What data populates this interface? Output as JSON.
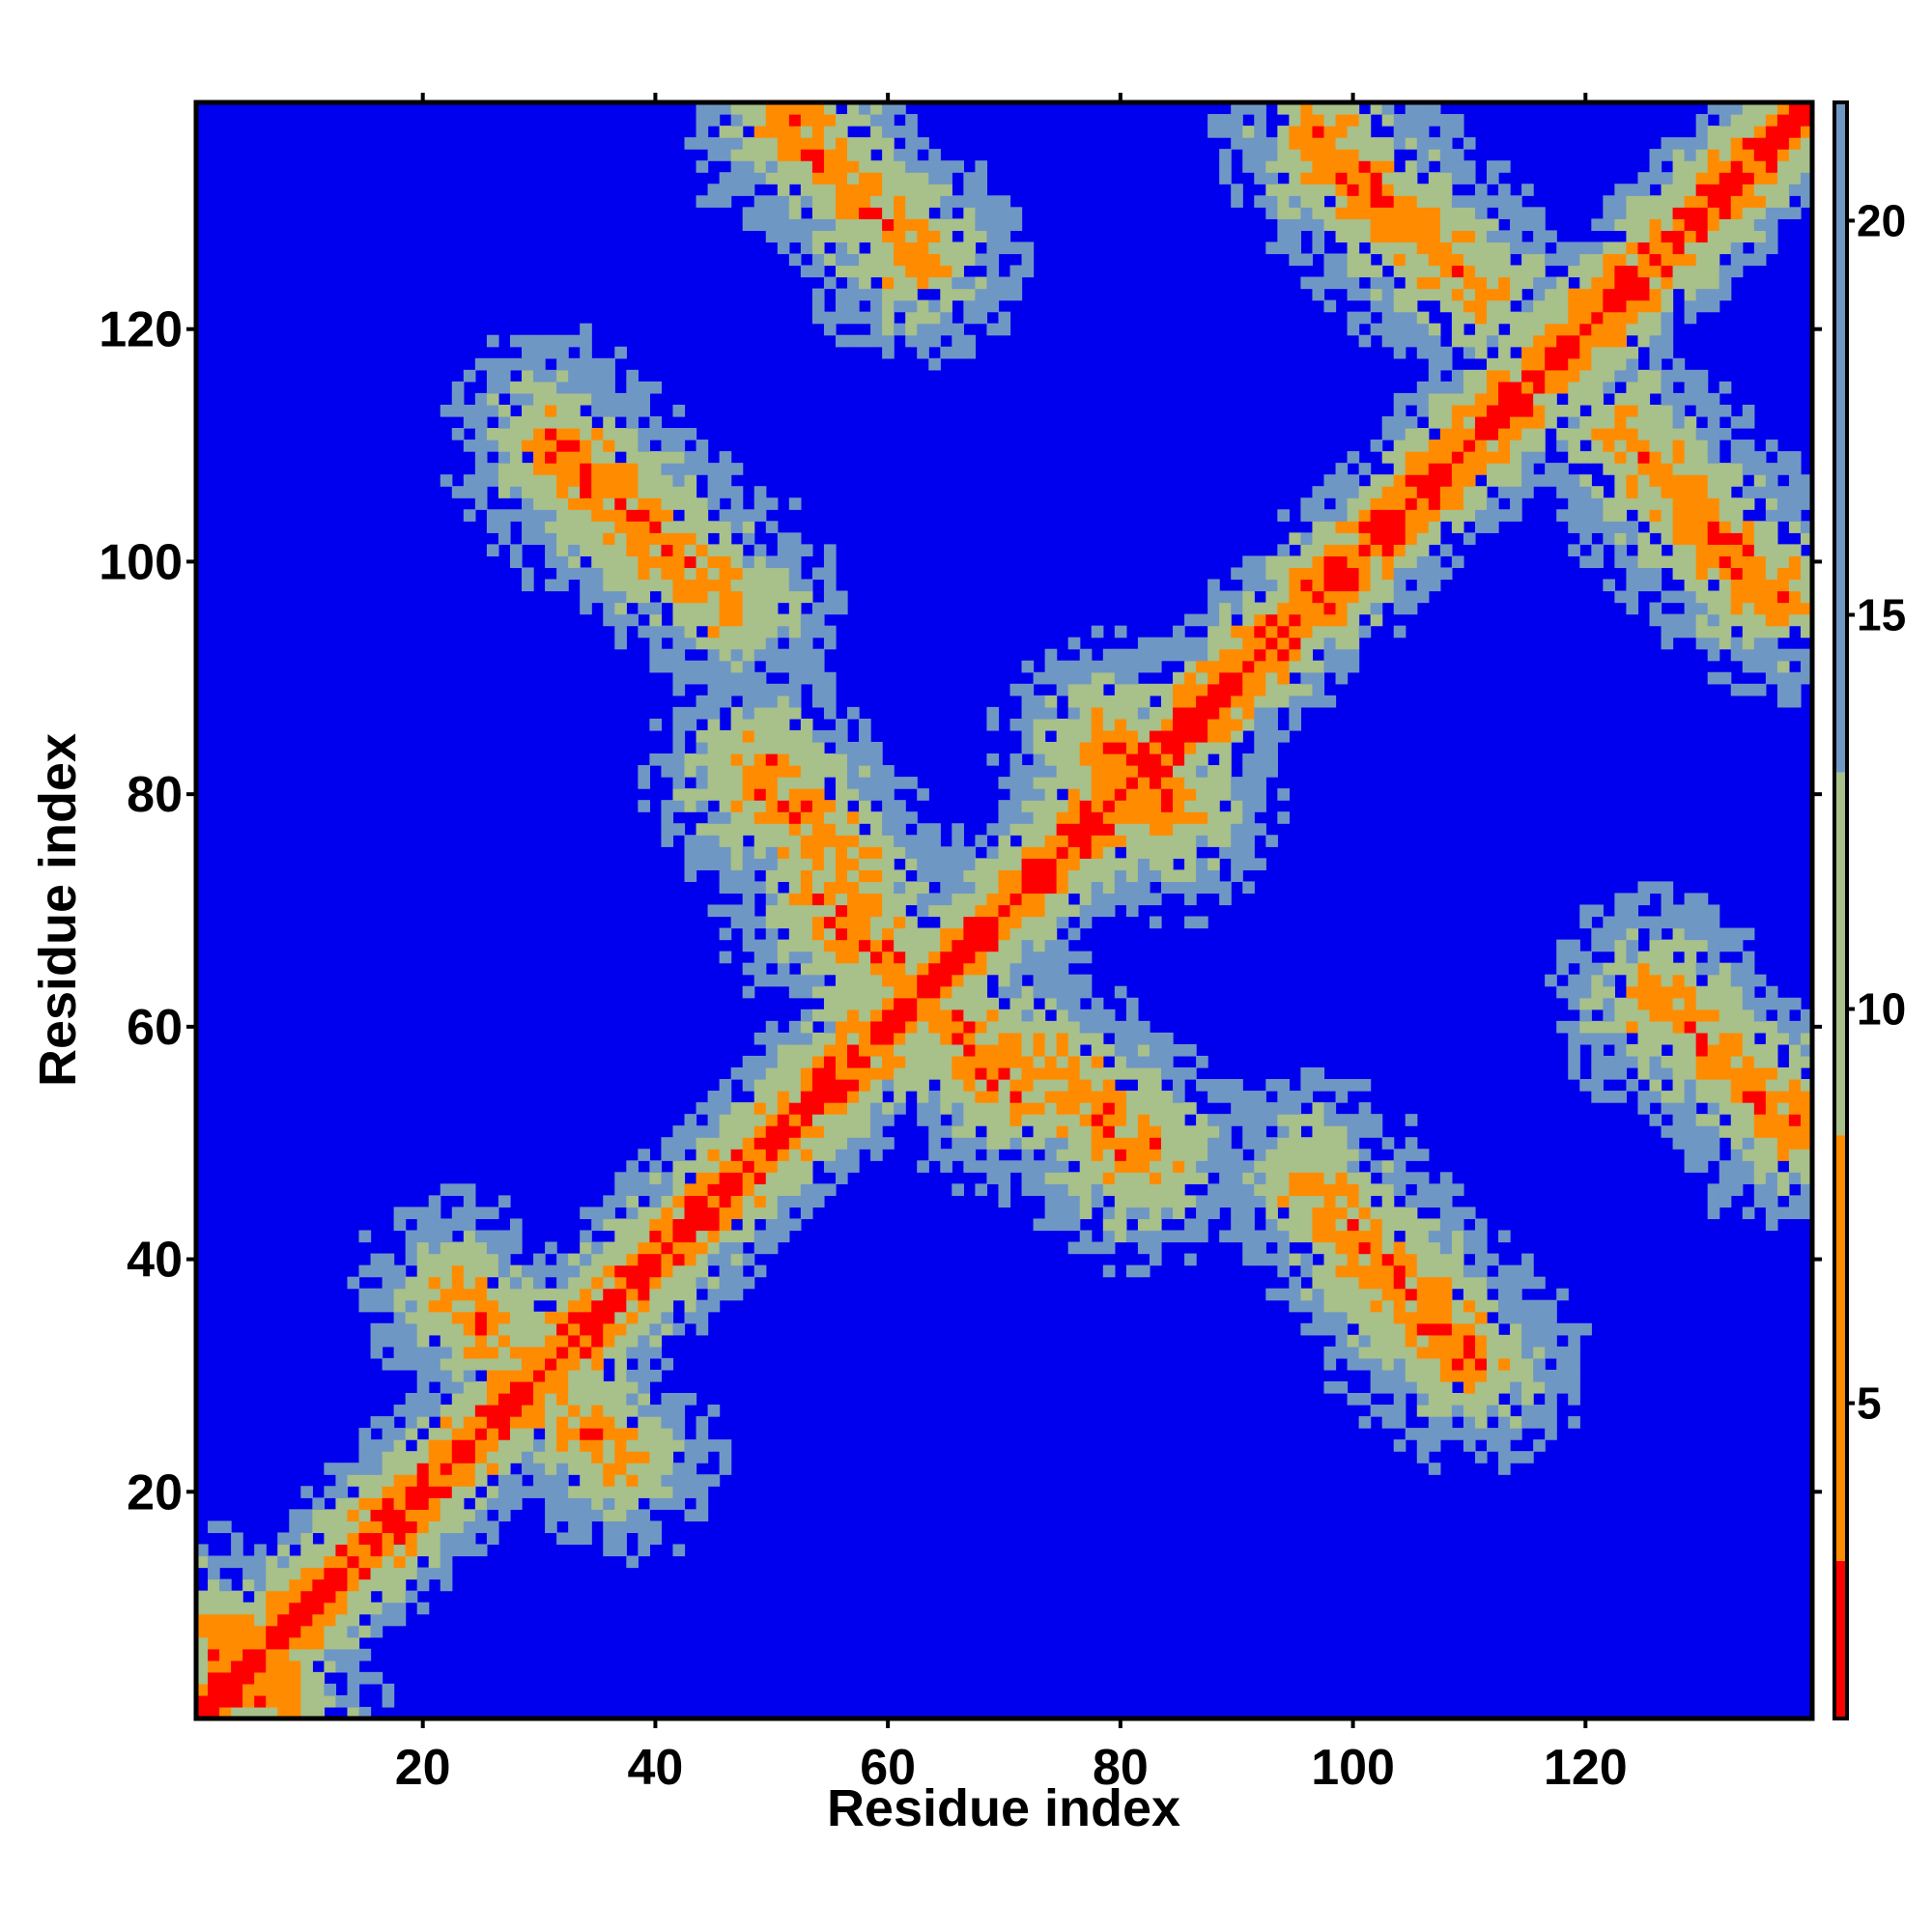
{
  "chart_data": {
    "type": "heatmap",
    "title": "",
    "xlabel": "Residue index",
    "ylabel": "Residue index",
    "n_residues": 139,
    "xlim": [
      1,
      139
    ],
    "ylim": [
      1,
      139
    ],
    "x_ticks": [
      20,
      40,
      60,
      80,
      100,
      120
    ],
    "y_ticks": [
      20,
      40,
      60,
      80,
      100,
      120
    ],
    "colorbar": {
      "ticks": [
        5,
        10,
        15,
        20
      ],
      "range": [
        1,
        21.5
      ],
      "colors": {
        "near": "#ff0000",
        "close": "#ff8c00",
        "mid_low": "#a8c08a",
        "mid_high": "#6f97c4",
        "far": "#0000ee"
      }
    },
    "contact_bands": [
      {
        "from": [
          1,
          1
        ],
        "to": [
          139,
          139
        ],
        "kind": "diagonal"
      },
      {
        "from": [
          51,
          139
        ],
        "to": [
          62,
          126
        ],
        "kind": "antiparallel"
      },
      {
        "from": [
          97,
          137
        ],
        "to": [
          111,
          123
        ],
        "kind": "antiparallel"
      },
      {
        "from": [
          31,
          111
        ],
        "to": [
          47,
          96
        ],
        "kind": "antiparallel"
      },
      {
        "from": [
          49,
          83
        ],
        "to": [
          57,
          74
        ],
        "kind": "antiparallel"
      },
      {
        "from": [
          56,
          72
        ],
        "to": [
          63,
          62
        ],
        "kind": "antiparallel"
      },
      {
        "from": [
          63,
          61
        ],
        "to": [
          71,
          54
        ],
        "kind": "antiparallel"
      },
      {
        "from": [
          75,
          56
        ],
        "to": [
          81,
          48
        ],
        "kind": "antiparallel"
      },
      {
        "from": [
          96,
          47
        ],
        "to": [
          109,
          31
        ],
        "kind": "antiparallel"
      },
      {
        "from": [
          124,
          110
        ],
        "to": [
          134,
          98
        ],
        "kind": "antiparallel"
      },
      {
        "from": [
          126,
          63
        ],
        "to": [
          138,
          51
        ],
        "kind": "antiparallel"
      },
      {
        "from": [
          79,
          85
        ],
        "to": [
          84,
          78
        ],
        "kind": "antiparallel"
      },
      {
        "from": [
          1,
          8
        ],
        "to": [
          8,
          1
        ],
        "kind": "antiparallel"
      },
      {
        "from": [
          23,
          37
        ],
        "to": [
          27,
          33
        ],
        "kind": "antiparallel"
      }
    ]
  }
}
